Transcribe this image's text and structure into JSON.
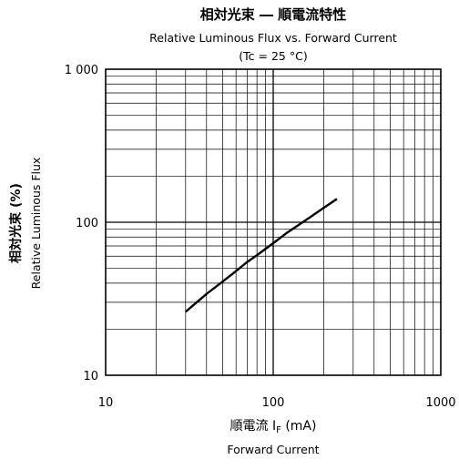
{
  "chart_data": {
    "type": "line",
    "title": "相対光束 ― 順電流特性",
    "subtitle": "Relative Luminous Flux vs. Forward Current",
    "condition": "(Tc = 25 °C)",
    "xlabel_jp_main": "順電流 I",
    "xlabel_jp_sub": "F",
    "xlabel_unit": " (mA)",
    "xlabel_en": "Forward Current",
    "ylabel_jp": "相対光束 (%)",
    "ylabel_en": "Relative Luminous Flux",
    "x_scale": "log",
    "y_scale": "log",
    "xlim": [
      10,
      1000
    ],
    "ylim": [
      10,
      1000
    ],
    "x_tick_labels": [
      "10",
      "100",
      "1000"
    ],
    "y_tick_labels": [
      "10",
      "100",
      "1 000"
    ],
    "grid": true,
    "legend": "none",
    "series": [
      {
        "x": [
          30,
          40,
          50,
          60,
          70,
          80,
          100,
          120,
          150,
          200,
          240
        ],
        "y": [
          26,
          34,
          41,
          48,
          55,
          61,
          73,
          85,
          100,
          124,
          142
        ],
        "color": "#000000"
      }
    ]
  }
}
